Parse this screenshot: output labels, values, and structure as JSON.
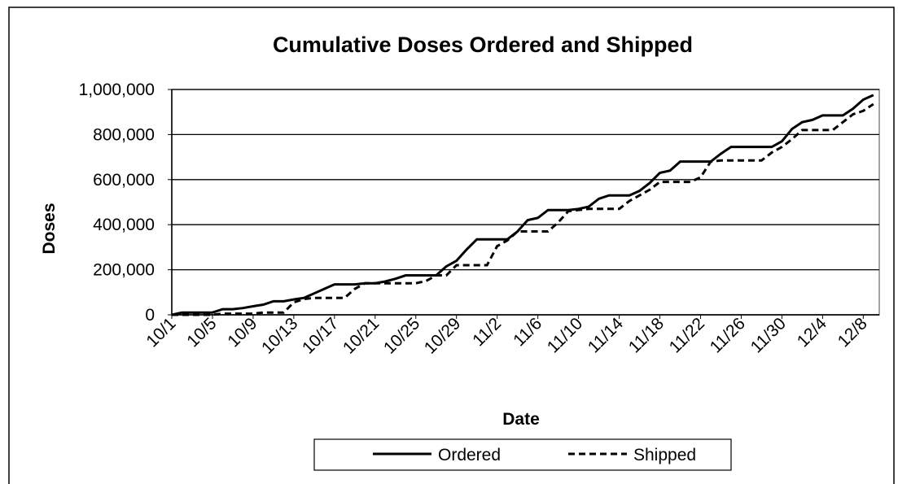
{
  "chart_data": {
    "type": "line",
    "title": "Cumulative Doses Ordered and Shipped",
    "x_label": "Date",
    "y_label": "Doses",
    "categories": [
      "10/1",
      null,
      null,
      null,
      "10/5",
      null,
      null,
      null,
      "10/9",
      null,
      null,
      null,
      "10/13",
      null,
      null,
      null,
      "10/17",
      null,
      null,
      null,
      "10/21",
      null,
      null,
      null,
      "10/25",
      null,
      null,
      null,
      "10/29",
      null,
      null,
      null,
      "11/2",
      null,
      null,
      null,
      "11/6",
      null,
      null,
      null,
      "11/10",
      null,
      null,
      null,
      "11/14",
      null,
      null,
      null,
      "11/18",
      null,
      null,
      null,
      "11/22",
      null,
      null,
      null,
      "11/26",
      null,
      null,
      null,
      "11/30",
      null,
      null,
      null,
      "12/4",
      null,
      null,
      null,
      "12/8",
      null
    ],
    "series": [
      {
        "name": "Ordered",
        "color": "#000000",
        "line_style": "solid",
        "values": [
          0,
          10000,
          10000,
          10000,
          10000,
          25000,
          25000,
          30000,
          38000,
          45000,
          60000,
          60000,
          68000,
          75000,
          95000,
          115000,
          135000,
          135000,
          135000,
          140000,
          140000,
          148000,
          160000,
          175000,
          175000,
          175000,
          175000,
          215000,
          240000,
          290000,
          335000,
          335000,
          335000,
          335000,
          370000,
          420000,
          430000,
          465000,
          465000,
          465000,
          470000,
          480000,
          515000,
          530000,
          530000,
          530000,
          550000,
          585000,
          630000,
          640000,
          680000,
          680000,
          680000,
          680000,
          715000,
          745000,
          745000,
          745000,
          745000,
          745000,
          770000,
          825000,
          855000,
          865000,
          885000,
          885000,
          885000,
          915000,
          955000,
          975000
        ]
      },
      {
        "name": "Shipped",
        "color": "#000000",
        "line_style": "dashed",
        "values": [
          0,
          0,
          0,
          0,
          0,
          5000,
          5000,
          5000,
          5000,
          10000,
          10000,
          10000,
          55000,
          70000,
          75000,
          75000,
          75000,
          75000,
          115000,
          140000,
          140000,
          140000,
          140000,
          140000,
          140000,
          150000,
          175000,
          175000,
          220000,
          220000,
          220000,
          220000,
          305000,
          330000,
          370000,
          370000,
          370000,
          370000,
          410000,
          460000,
          465000,
          470000,
          470000,
          470000,
          470000,
          505000,
          530000,
          555000,
          590000,
          590000,
          590000,
          590000,
          610000,
          680000,
          685000,
          685000,
          685000,
          685000,
          685000,
          720000,
          745000,
          780000,
          820000,
          820000,
          820000,
          820000,
          855000,
          890000,
          905000,
          935000
        ]
      }
    ],
    "ylim": [
      0,
      1000000
    ],
    "yticks": [
      0,
      {
        "value": 200000,
        "label": "200,000"
      },
      {
        "value": 400000,
        "label": "400,000"
      },
      {
        "value": 600000,
        "label": "600,000"
      },
      {
        "value": 800000,
        "label": "800,000"
      },
      {
        "value": 1000000,
        "label": "1,000,000"
      }
    ],
    "grid": true,
    "legend": "bottom"
  }
}
